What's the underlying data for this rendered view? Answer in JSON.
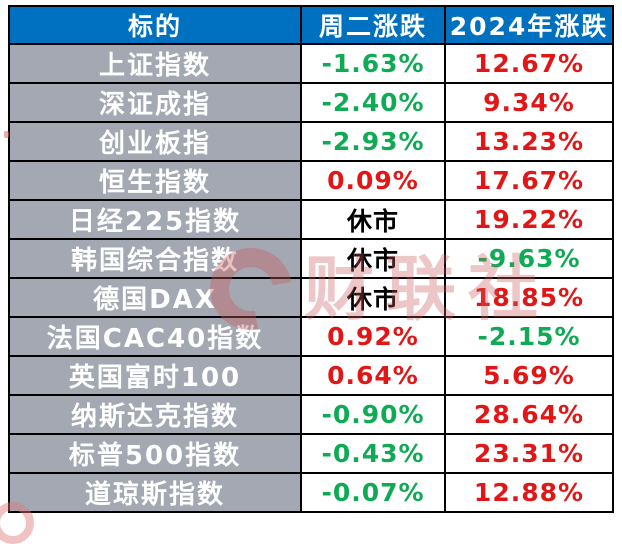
{
  "colors": {
    "header_bg": "#0070C0",
    "row_bg": "#A3A8B2",
    "up_color": "#E11717",
    "down_color": "#0FAB54",
    "closed_color": "#000000",
    "border_color": "#000000",
    "watermark_color": "#C95C5C"
  },
  "watermark": {
    "logo": "C",
    "text": "财联社"
  },
  "chart_data": {
    "type": "table",
    "columns": [
      "标的",
      "周二涨跌",
      "2024年涨跌"
    ],
    "rows": [
      {
        "name": "上证指数",
        "tuesday": "-1.63%",
        "tuesday_trend": "down",
        "ytd": "12.67%",
        "ytd_trend": "up"
      },
      {
        "name": "深证成指",
        "tuesday": "-2.40%",
        "tuesday_trend": "down",
        "ytd": "9.34%",
        "ytd_trend": "up"
      },
      {
        "name": "创业板指",
        "tuesday": "-2.93%",
        "tuesday_trend": "down",
        "ytd": "13.23%",
        "ytd_trend": "up"
      },
      {
        "name": "恒生指数",
        "tuesday": "0.09%",
        "tuesday_trend": "up",
        "ytd": "17.67%",
        "ytd_trend": "up"
      },
      {
        "name": "日经225指数",
        "tuesday": "休市",
        "tuesday_trend": "closed",
        "ytd": "19.22%",
        "ytd_trend": "up"
      },
      {
        "name": "韩国综合指数",
        "tuesday": "休市",
        "tuesday_trend": "closed",
        "ytd": "-9.63%",
        "ytd_trend": "down"
      },
      {
        "name": "德国DAX",
        "tuesday": "休市",
        "tuesday_trend": "closed",
        "ytd": "18.85%",
        "ytd_trend": "up"
      },
      {
        "name": "法国CAC40指数",
        "tuesday": "0.92%",
        "tuesday_trend": "up",
        "ytd": "-2.15%",
        "ytd_trend": "down"
      },
      {
        "name": "英国富时100",
        "tuesday": "0.64%",
        "tuesday_trend": "up",
        "ytd": "5.69%",
        "ytd_trend": "up"
      },
      {
        "name": "纳斯达克指数",
        "tuesday": "-0.90%",
        "tuesday_trend": "down",
        "ytd": "28.64%",
        "ytd_trend": "up"
      },
      {
        "name": "标普500指数",
        "tuesday": "-0.43%",
        "tuesday_trend": "down",
        "ytd": "23.31%",
        "ytd_trend": "up"
      },
      {
        "name": "道琼斯指数",
        "tuesday": "-0.07%",
        "tuesday_trend": "down",
        "ytd": "12.88%",
        "ytd_trend": "up"
      }
    ],
    "title": "",
    "legend": "red = gain, green = loss, black 休市 = market closed",
    "layout": "3-column bordered table, blue header row, gray label column, white value cells"
  }
}
